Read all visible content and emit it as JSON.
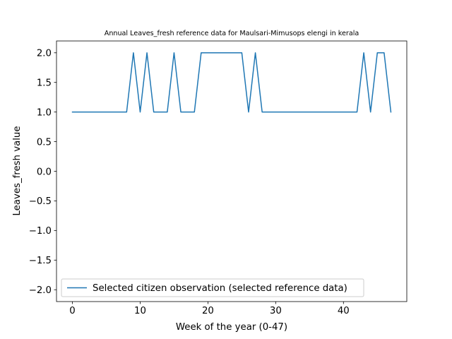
{
  "chart_data": {
    "type": "line",
    "title": "Annual Leaves_fresh reference data for Maulsari-Mimusops elengi in kerala",
    "xlabel": "Week of the year (0-47)",
    "ylabel": "Leaves_fresh value",
    "xlim": [
      -2.35,
      49.35
    ],
    "ylim": [
      -2.2,
      2.2
    ],
    "xticks": [
      0,
      10,
      20,
      30,
      40
    ],
    "yticks": [
      -2.0,
      -1.5,
      -1.0,
      -0.5,
      0.0,
      0.5,
      1.0,
      1.5,
      2.0
    ],
    "xtick_labels": [
      "0",
      "10",
      "20",
      "30",
      "40"
    ],
    "ytick_labels": [
      "−2.0",
      "−1.5",
      "−1.0",
      "−0.5",
      "0.0",
      "0.5",
      "1.0",
      "1.5",
      "2.0"
    ],
    "grid": false,
    "legend_position": "lower-left",
    "series": [
      {
        "name": "Selected citizen observation (selected reference data)",
        "color": "#1f77b4",
        "x": [
          0,
          1,
          2,
          3,
          4,
          5,
          6,
          7,
          8,
          9,
          10,
          11,
          12,
          13,
          14,
          15,
          16,
          17,
          18,
          19,
          20,
          21,
          22,
          23,
          24,
          25,
          26,
          27,
          28,
          29,
          30,
          31,
          32,
          33,
          34,
          35,
          36,
          37,
          38,
          39,
          40,
          41,
          42,
          43,
          44,
          45,
          46,
          47
        ],
        "y": [
          1,
          1,
          1,
          1,
          1,
          1,
          1,
          1,
          1,
          2,
          1,
          2,
          1,
          1,
          1,
          2,
          1,
          1,
          1,
          2,
          2,
          2,
          2,
          2,
          2,
          2,
          1,
          2,
          1,
          1,
          1,
          1,
          1,
          1,
          1,
          1,
          1,
          1,
          1,
          1,
          1,
          1,
          1,
          2,
          1,
          2,
          2,
          1
        ]
      }
    ]
  }
}
